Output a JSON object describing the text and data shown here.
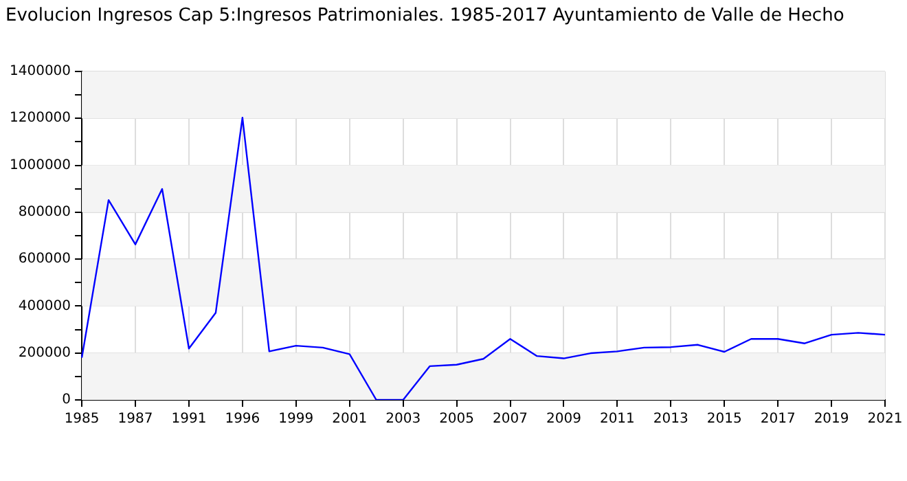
{
  "chart_data": {
    "type": "line",
    "title": "Evolucion Ingresos Cap 5:Ingresos Patrimoniales. 1985-2017 Ayuntamiento de Valle de Hecho",
    "categories": [
      "1985",
      null,
      "1987",
      null,
      "1991",
      null,
      "1996",
      null,
      "1999",
      null,
      "2001",
      null,
      "2003",
      null,
      "2005",
      null,
      "2007",
      null,
      "2009",
      null,
      "2011",
      null,
      "2013",
      null,
      "2015",
      null,
      "2017",
      null,
      "2019",
      null,
      "2021"
    ],
    "series": [
      {
        "color": "#0000ff",
        "values": [
          180000,
          852000,
          663000,
          899000,
          219000,
          371000,
          1203000,
          207000,
          231000,
          223000,
          195000,
          0,
          0,
          144000,
          150000,
          175000,
          260000,
          187000,
          177000,
          199000,
          207000,
          223000,
          225000,
          235000,
          205000,
          260000,
          260000,
          241000,
          278000,
          286000,
          278000
        ]
      }
    ],
    "ylim": [
      0,
      1400000
    ],
    "yticks": [
      0,
      {
        "value": 100000,
        "label": null
      },
      200000,
      {
        "value": 300000,
        "label": null
      },
      400000,
      {
        "value": 500000,
        "label": null
      },
      600000,
      {
        "value": 700000,
        "label": null
      },
      800000,
      {
        "value": 900000,
        "label": null
      },
      1000000,
      {
        "value": 1100000,
        "label": null
      },
      1200000,
      {
        "value": 1300000,
        "label": null
      },
      1400000
    ],
    "grid": true,
    "legend": false,
    "marker": "none",
    "line_style": "solid"
  }
}
